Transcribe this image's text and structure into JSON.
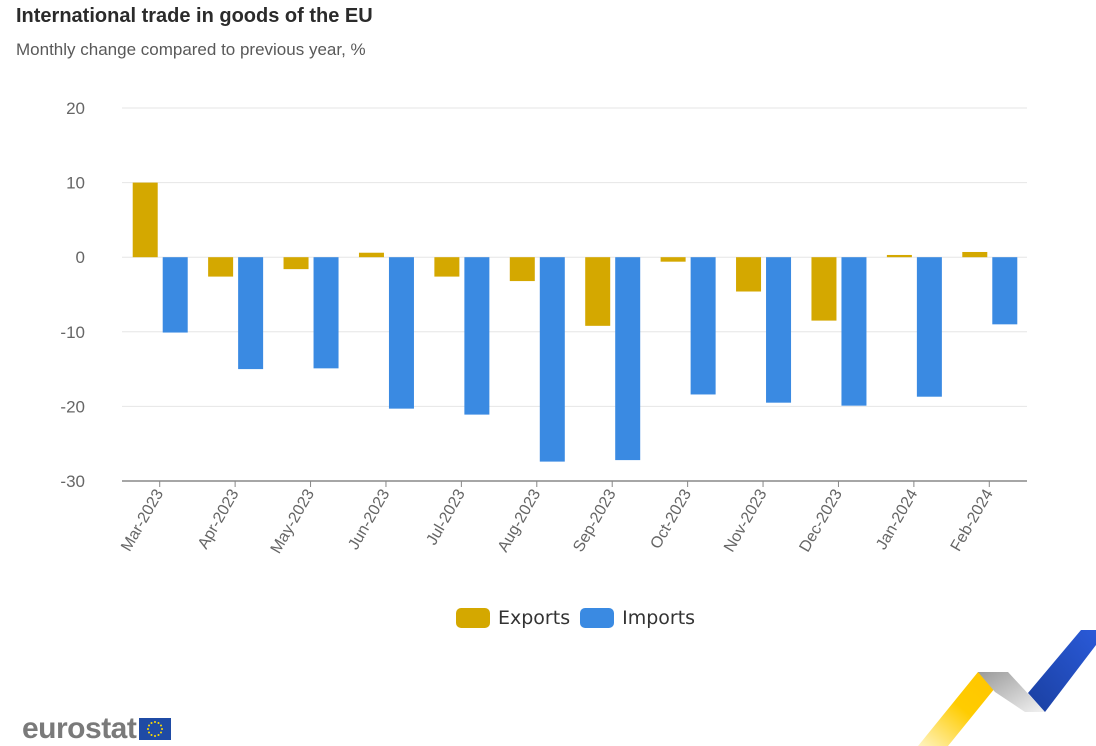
{
  "header": {
    "title": "International trade in goods of the EU",
    "subtitle": "Monthly change compared to previous year, %"
  },
  "colors": {
    "exports": "#d4a800",
    "imports": "#3a8ae2",
    "grid": "#e6e6e6",
    "axis": "#888888",
    "tick_text": "#666666"
  },
  "chart_data": {
    "type": "bar",
    "title": "International trade in goods of the EU",
    "subtitle": "Monthly change compared to previous year, %",
    "xlabel": "",
    "ylabel": "",
    "categories": [
      "Mar-2023",
      "Apr-2023",
      "May-2023",
      "Jun-2023",
      "Jul-2023",
      "Aug-2023",
      "Sep-2023",
      "Oct-2023",
      "Nov-2023",
      "Dec-2023",
      "Jan-2024",
      "Feb-2024"
    ],
    "series": [
      {
        "name": "Exports",
        "values": [
          10.0,
          -2.6,
          -1.6,
          0.6,
          -2.6,
          -3.2,
          -9.2,
          -0.6,
          -4.6,
          -8.5,
          0.3,
          0.7
        ]
      },
      {
        "name": "Imports",
        "values": [
          -10.1,
          -15.0,
          -14.9,
          -20.3,
          -21.1,
          -27.4,
          -27.2,
          -18.4,
          -19.5,
          -19.9,
          -18.7,
          -9.0
        ]
      }
    ],
    "ylim": [
      -30,
      20
    ],
    "yticks": [
      20,
      10,
      0,
      -10,
      -20,
      -30
    ],
    "grid": true,
    "legend": "bottom-center"
  },
  "legend": {
    "exports_label": "Exports",
    "imports_label": "Imports"
  },
  "footer": {
    "logo_text": "eurostat"
  }
}
